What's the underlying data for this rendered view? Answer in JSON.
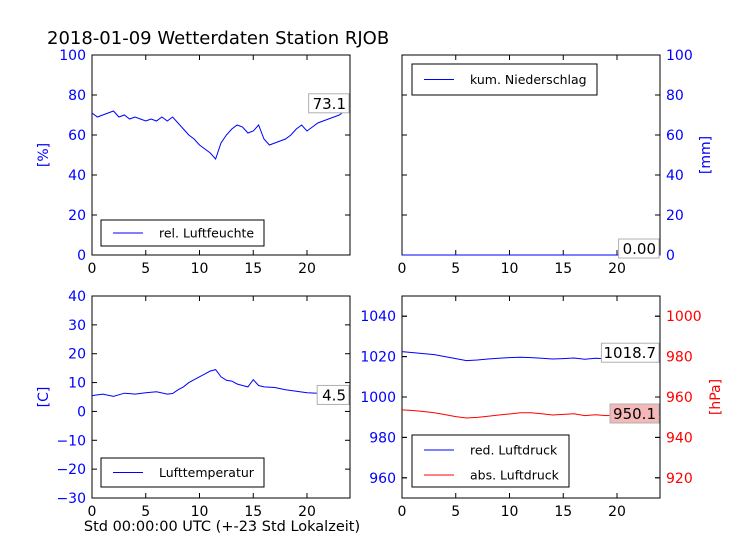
{
  "title": "2018-01-09 Wetterdaten Station RJOB",
  "x_caption": "Std 00:00:00 UTC (+-23 Std Lokalzeit)",
  "colors": {
    "blue": "#0000ff",
    "red": "#ff0000",
    "black": "#000000",
    "red_box": "#f4b8b8"
  },
  "chart_data": [
    {
      "id": "humidity",
      "type": "line",
      "ylabel": "[%]",
      "xlim": [
        0,
        24
      ],
      "ylim": [
        0,
        100
      ],
      "xticks": [
        0,
        5,
        10,
        15,
        20
      ],
      "yticks": [
        0,
        20,
        40,
        60,
        80,
        100
      ],
      "legend_placement": "lower-left",
      "last_value_label": "73.1",
      "series": [
        {
          "name": "rel. Luftfeuchte",
          "color": "#0000ff",
          "x": [
            0,
            0.5,
            1,
            1.5,
            2,
            2.5,
            3,
            3.5,
            4,
            4.5,
            5,
            5.5,
            6,
            6.5,
            7,
            7.5,
            8,
            8.5,
            9,
            9.5,
            10,
            10.5,
            11,
            11.5,
            12,
            12.5,
            13,
            13.5,
            14,
            14.5,
            15,
            15.5,
            16,
            16.5,
            17,
            17.5,
            18,
            18.5,
            19,
            19.5,
            20,
            20.5,
            21,
            21.5,
            22,
            22.5,
            23,
            23.5,
            24
          ],
          "y": [
            71,
            69,
            70,
            71,
            72,
            69,
            70,
            68,
            69,
            68,
            67,
            68,
            67,
            69,
            67,
            69,
            66,
            63,
            60,
            58,
            55,
            53,
            51,
            48,
            56,
            60,
            63,
            65,
            64,
            61,
            62,
            65,
            58,
            55,
            56,
            57,
            58,
            60,
            63,
            65,
            62,
            64,
            66,
            67,
            68,
            69,
            70,
            72,
            73.1
          ]
        }
      ]
    },
    {
      "id": "precipitation",
      "type": "line",
      "ylabel": "[mm]",
      "xlim": [
        0,
        24
      ],
      "ylim": [
        0,
        100
      ],
      "xticks": [
        0,
        5,
        10,
        15,
        20
      ],
      "yticks": [
        0,
        20,
        40,
        60,
        80,
        100
      ],
      "legend_placement": "top-left",
      "last_value_label": "0.00",
      "series": [
        {
          "name": "kum. Niederschlag",
          "color": "#0000ff",
          "x": [
            0,
            24
          ],
          "y": [
            0,
            0
          ]
        }
      ]
    },
    {
      "id": "temperature",
      "type": "line",
      "ylabel": "[C]",
      "xlim": [
        0,
        24
      ],
      "ylim": [
        -30,
        40
      ],
      "xticks": [
        0,
        5,
        10,
        15,
        20
      ],
      "yticks": [
        -30,
        -20,
        -10,
        0,
        10,
        20,
        30,
        40
      ],
      "legend_placement": "lower-left",
      "last_value_label": "4.5",
      "series": [
        {
          "name": "Lufttemperatur",
          "color": "#0000ff",
          "x": [
            0,
            1,
            2,
            3,
            4,
            5,
            6,
            7,
            7.5,
            8,
            8.5,
            9,
            9.5,
            10,
            10.5,
            11,
            11.5,
            12,
            12.5,
            13,
            13.5,
            14,
            14.5,
            15,
            15.5,
            16,
            17,
            18,
            19,
            20,
            21,
            22,
            23,
            24
          ],
          "y": [
            5.5,
            6,
            5.2,
            6.3,
            6,
            6.5,
            6.8,
            6,
            6.2,
            7.5,
            8.5,
            10,
            11,
            12,
            13,
            14,
            14.5,
            12,
            10.8,
            10.5,
            9.5,
            9,
            8.5,
            11,
            9,
            8.5,
            8.3,
            7.5,
            7,
            6.5,
            6.3,
            5.8,
            5,
            4.5
          ]
        }
      ]
    },
    {
      "id": "pressure",
      "type": "line",
      "ylabel_right": "[hPa]",
      "xlim": [
        0,
        24
      ],
      "ylim_left": [
        950,
        1050
      ],
      "ylim_right": [
        910,
        1010
      ],
      "xticks": [
        0,
        5,
        10,
        15,
        20
      ],
      "yticks_left": [
        960,
        980,
        1000,
        1020,
        1040
      ],
      "yticks_right": [
        920,
        940,
        960,
        980,
        1000
      ],
      "legend_placement": "lower-left",
      "series": [
        {
          "name": "red. Luftdruck",
          "color": "#0000ff",
          "axis": "left",
          "last_value_label": "1018.7",
          "x": [
            0,
            1,
            2,
            3,
            4,
            5,
            6,
            7,
            8,
            9,
            10,
            11,
            12,
            13,
            14,
            15,
            16,
            17,
            18,
            19,
            20,
            21,
            22,
            23,
            24
          ],
          "y": [
            1022.5,
            1022,
            1021.5,
            1021,
            1020,
            1019,
            1018,
            1018.3,
            1018.8,
            1019.2,
            1019.5,
            1019.7,
            1019.5,
            1019.2,
            1018.8,
            1019,
            1019.3,
            1018.7,
            1019.2,
            1018.9,
            1019.5,
            1019.1,
            1018.8,
            1019,
            1018.7
          ]
        },
        {
          "name": "abs. Luftdruck",
          "color": "#ff0000",
          "axis": "right",
          "last_value_label": "950.1",
          "x": [
            0,
            1,
            2,
            3,
            4,
            5,
            6,
            7,
            8,
            9,
            10,
            11,
            12,
            13,
            14,
            15,
            16,
            17,
            18,
            19,
            20,
            21,
            22,
            23,
            24
          ],
          "y": [
            953.6,
            953.3,
            952.8,
            952.2,
            951.3,
            950.3,
            949.6,
            949.9,
            950.5,
            951.1,
            951.6,
            952.2,
            952.2,
            951.7,
            951.1,
            951.4,
            951.7,
            950.8,
            951.2,
            950.8,
            951.3,
            950.9,
            950.5,
            950.5,
            950.1
          ]
        }
      ]
    }
  ]
}
